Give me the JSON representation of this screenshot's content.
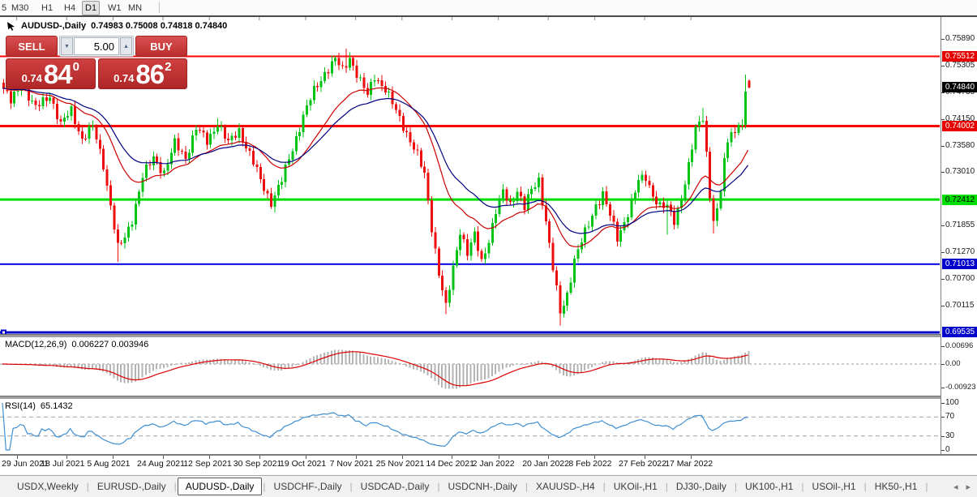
{
  "toolbar": {
    "timeframes": [
      "5",
      "M30",
      "H1",
      "H4",
      "D1",
      "W1",
      "MN"
    ],
    "active": "D1"
  },
  "chart_header": {
    "symbol": "AUDUSD-,Daily",
    "values": "0.74983 0.75008 0.74818 0.74840"
  },
  "trade_panel": {
    "sell_label": "SELL",
    "buy_label": "BUY",
    "volume": "5.00",
    "down_arrow": "▼",
    "up_arrow": "▲",
    "sell_price_small": "0.74",
    "sell_price_big": "84",
    "sell_price_sup": "0",
    "buy_price_small": "0.74",
    "buy_price_big": "86",
    "buy_price_sup": "2"
  },
  "chart_data": {
    "type": "candlestick",
    "symbol": "AUDUSD-",
    "timeframe": "Daily",
    "ohlc": {
      "open": "0.74983",
      "high": "0.75008",
      "low": "0.74818",
      "close": "0.74840"
    },
    "up_color": "#00c314",
    "down_color": "#ee0e0e",
    "x_dates": [
      "29 Jun 2021",
      "18 Jul 2021",
      "5 Aug 2021",
      "24 Aug 2021",
      "12 Sep 2021",
      "30 Sep 2021",
      "19 Oct 2021",
      "7 Nov 2021",
      "25 Nov 2021",
      "14 Dec 2021",
      "2 Jan 2022",
      "20 Jan 2022",
      "8 Feb 2022",
      "27 Feb 2022",
      "17 Mar 2022"
    ],
    "date_tick_candle_indices": [
      4,
      18,
      31,
      45,
      58,
      72,
      85,
      99,
      112,
      126,
      139,
      153,
      166,
      180,
      193
    ],
    "n_candles": 210,
    "ylim": [
      0.695,
      0.76364
    ],
    "close_keypoints": [
      [
        0,
        0.7482
      ],
      [
        2,
        0.7452
      ],
      [
        5,
        0.7492
      ],
      [
        9,
        0.7438
      ],
      [
        13,
        0.7468
      ],
      [
        16,
        0.7402
      ],
      [
        19,
        0.7435
      ],
      [
        22,
        0.7372
      ],
      [
        25,
        0.7398
      ],
      [
        28,
        0.7318
      ],
      [
        30,
        0.7228
      ],
      [
        32,
        0.7135
      ],
      [
        34,
        0.7158
      ],
      [
        36,
        0.72
      ],
      [
        39,
        0.729
      ],
      [
        42,
        0.7332
      ],
      [
        45,
        0.73
      ],
      [
        48,
        0.7362
      ],
      [
        51,
        0.7332
      ],
      [
        54,
        0.7396
      ],
      [
        57,
        0.7366
      ],
      [
        60,
        0.7408
      ],
      [
        63,
        0.7362
      ],
      [
        66,
        0.7392
      ],
      [
        69,
        0.734
      ],
      [
        72,
        0.7282
      ],
      [
        75,
        0.7236
      ],
      [
        78,
        0.7282
      ],
      [
        81,
        0.7352
      ],
      [
        84,
        0.7422
      ],
      [
        87,
        0.7476
      ],
      [
        90,
        0.7516
      ],
      [
        93,
        0.7544
      ],
      [
        95,
        0.752
      ],
      [
        97,
        0.755
      ],
      [
        100,
        0.7496
      ],
      [
        102,
        0.7466
      ],
      [
        104,
        0.751
      ],
      [
        107,
        0.748
      ],
      [
        110,
        0.7432
      ],
      [
        113,
        0.7386
      ],
      [
        116,
        0.7336
      ],
      [
        118,
        0.7294
      ],
      [
        120,
        0.7182
      ],
      [
        122,
        0.7082
      ],
      [
        124,
        0.7006
      ],
      [
        126,
        0.7092
      ],
      [
        128,
        0.7176
      ],
      [
        130,
        0.7126
      ],
      [
        132,
        0.7162
      ],
      [
        134,
        0.7106
      ],
      [
        136,
        0.7156
      ],
      [
        138,
        0.7216
      ],
      [
        140,
        0.7256
      ],
      [
        142,
        0.723
      ],
      [
        144,
        0.7264
      ],
      [
        146,
        0.7224
      ],
      [
        148,
        0.726
      ],
      [
        150,
        0.7284
      ],
      [
        152,
        0.7196
      ],
      [
        154,
        0.7092
      ],
      [
        156,
        0.6994
      ],
      [
        158,
        0.7036
      ],
      [
        160,
        0.7112
      ],
      [
        162,
        0.715
      ],
      [
        164,
        0.7186
      ],
      [
        166,
        0.723
      ],
      [
        168,
        0.7254
      ],
      [
        170,
        0.7206
      ],
      [
        172,
        0.7156
      ],
      [
        174,
        0.7194
      ],
      [
        176,
        0.7234
      ],
      [
        178,
        0.728
      ],
      [
        180,
        0.729
      ],
      [
        182,
        0.7252
      ],
      [
        184,
        0.7226
      ],
      [
        186,
        0.7224
      ],
      [
        188,
        0.7196
      ],
      [
        190,
        0.7246
      ],
      [
        192,
        0.7312
      ],
      [
        194,
        0.7392
      ],
      [
        196,
        0.7422
      ],
      [
        197,
        0.7342
      ],
      [
        198,
        0.7252
      ],
      [
        199,
        0.7196
      ],
      [
        200,
        0.7212
      ],
      [
        201,
        0.7262
      ],
      [
        202,
        0.7322
      ],
      [
        203,
        0.7366
      ],
      [
        204,
        0.7396
      ],
      [
        205,
        0.7382
      ],
      [
        206,
        0.7412
      ],
      [
        207,
        0.74
      ],
      [
        208,
        0.7466
      ],
      [
        209,
        0.7484
      ]
    ],
    "candle_extreme_overrides": {
      "32": {
        "low": 0.7106
      },
      "60": {
        "high": 0.7417
      },
      "93": {
        "high": 0.7552
      },
      "96": {
        "high": 0.7568
      },
      "97": {
        "high": 0.756
      },
      "124": {
        "low": 0.6993
      },
      "156": {
        "low": 0.6968
      },
      "186": {
        "low": 0.7165
      },
      "196": {
        "high": 0.744
      },
      "199": {
        "low": 0.7168
      },
      "208": {
        "high": 0.7512
      }
    },
    "last_candle": {
      "open": 0.74983,
      "high": 0.75008,
      "low": 0.74818,
      "close": 0.7484
    },
    "moving_averages": [
      {
        "name": "fast",
        "type": "ema",
        "period": 21,
        "color": "#cc0000"
      },
      {
        "name": "slow",
        "type": "ema",
        "period": 34,
        "color": "#000080"
      }
    ],
    "horizontal_lines": [
      {
        "price": 0.75512,
        "color": "#ff0000",
        "width": 2
      },
      {
        "price": 0.74002,
        "color": "#ff0000",
        "width": 3
      },
      {
        "price": 0.72412,
        "color": "#00dd00",
        "width": 3
      },
      {
        "price": 0.71013,
        "color": "#0000e0",
        "width": 2
      },
      {
        "price": 0.69535,
        "color": "#0000c8",
        "width": 3,
        "handle": true
      }
    ],
    "price_axis": {
      "ticks": [
        "0.75890",
        "0.75305",
        "0.74735",
        "0.74150",
        "0.73580",
        "0.73010",
        "0.71855",
        "0.71270",
        "0.70700",
        "0.70115"
      ],
      "badges": [
        {
          "price": 0.75512,
          "label": "0.75512",
          "bg": "#e80000",
          "fg": "#ffffff"
        },
        {
          "price": 0.7484,
          "label": "0.74840",
          "bg": "#000000",
          "fg": "#ffffff"
        },
        {
          "price": 0.74002,
          "label": "0.74002",
          "bg": "#e80000",
          "fg": "#ffffff"
        },
        {
          "price": 0.72412,
          "label": "0.72412",
          "bg": "#00dd00",
          "fg": "#000000"
        },
        {
          "price": 0.71013,
          "label": "0.71013",
          "bg": "#0000cd",
          "fg": "#ffffff"
        },
        {
          "price": 0.69535,
          "label": "0.69535",
          "bg": "#0000cd",
          "fg": "#ffffff"
        }
      ]
    },
    "indicators": {
      "macd": {
        "label": "MACD(12,26,9)",
        "values_text": "0.006227 0.003946",
        "params": [
          12,
          26,
          9
        ],
        "histogram_color": "#b4b4b4",
        "signal_color": "#dd0000",
        "ticks": [
          {
            "v": 0.00696,
            "label": "0.00696"
          },
          {
            "v": 0,
            "label": "0.00"
          },
          {
            "v": -0.00923,
            "label": "-0.00923"
          }
        ]
      },
      "rsi": {
        "label": "RSI(14)",
        "value_text": "65.1432",
        "period": 14,
        "line_color": "#3f8fd2",
        "levels": [
          70,
          30
        ],
        "ticks": [
          {
            "v": 100,
            "label": "100"
          },
          {
            "v": 70,
            "label": "70"
          },
          {
            "v": 30,
            "label": "30"
          },
          {
            "v": 0,
            "label": "0"
          }
        ]
      }
    }
  },
  "symbol_tabs": {
    "items": [
      "USDX,Weekly",
      "EURUSD-,Daily",
      "AUDUSD-,Daily",
      "USDCHF-,Daily",
      "USDCAD-,Daily",
      "USDCNH-,Daily",
      "XAUUSD-,H4",
      "UKOil-,H1",
      "DJ30-,Daily",
      "UK100-,H1",
      "USOil-,H1",
      "HK50-,H1"
    ],
    "active_index": 2,
    "left_arrow": "◂",
    "right_arrow": "▸"
  }
}
